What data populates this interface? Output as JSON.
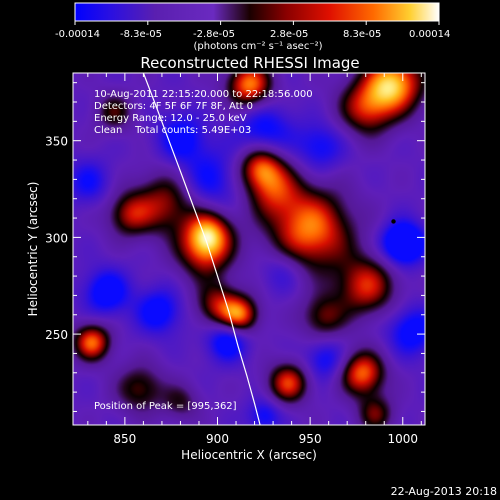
{
  "colorbar": {
    "tick_labels": [
      "-0.00014",
      "-8.3e-05",
      "-2.8e-05",
      "2.8e-05",
      "8.3e-05",
      "0.00014"
    ],
    "range": [
      -0.00014,
      0.00014
    ],
    "unit_label": "(photons cm⁻² s⁻¹ asec⁻²)",
    "colors": [
      "#0000ff",
      "#5a1fb0",
      "#6a2ac0",
      "#1a0000",
      "#cc0000",
      "#ff9a00",
      "#ffffff"
    ]
  },
  "chart_data": {
    "type": "heatmap",
    "title": "Reconstructed RHESSI Image",
    "xlabel": "Heliocentric X (arcsec)",
    "ylabel": "Heliocentric Y (arcsec)",
    "xlim": [
      822,
      1012
    ],
    "ylim": [
      203,
      385
    ],
    "x_ticks": [
      850,
      900,
      950,
      1000
    ],
    "y_ticks": [
      250,
      300,
      350
    ],
    "x_tick_labels": [
      "850",
      "900",
      "950",
      "1000"
    ],
    "y_tick_labels": [
      "250",
      "300",
      "350"
    ],
    "annotation_lines": [
      "10-Aug-2011 22:15:20.000 to 22:18:56.000",
      "Detectors: 4F 5F 6F 7F 8F, Att 0",
      "Energy Range: 12.0 - 25.0 keV",
      "Clean    Total counts: 5.49E+03"
    ],
    "peak_label": "Position of Peak = [995,362]",
    "peak": [
      995,
      362
    ],
    "limb_curve": {
      "x": [
        860,
        866,
        873,
        880,
        887,
        894,
        900,
        906,
        911,
        916,
        920,
        923
      ],
      "y": [
        385,
        370,
        352,
        334,
        316,
        298,
        280,
        262,
        244,
        228,
        214,
        203
      ]
    },
    "blobs": [
      [
        872,
        318,
        17,
        0.6
      ],
      [
        893,
        293,
        15,
        0.7
      ],
      [
        917,
        379,
        12,
        0.9
      ],
      [
        923,
        337,
        12,
        0.75
      ],
      [
        980,
        367,
        15,
        0.65
      ],
      [
        995,
        380,
        16,
        1.0
      ],
      [
        950,
        304,
        22,
        0.9
      ],
      [
        930,
        325,
        15,
        0.55
      ],
      [
        980,
        275,
        16,
        0.7
      ],
      [
        912,
        260,
        10,
        0.8
      ],
      [
        895,
        303,
        12,
        0.7
      ],
      [
        900,
        265,
        12,
        0.6
      ],
      [
        832,
        246,
        10,
        0.85
      ],
      [
        938,
        225,
        11,
        0.75
      ],
      [
        978,
        230,
        12,
        0.85
      ],
      [
        985,
        209,
        10,
        0.5
      ],
      [
        858,
        222,
        13,
        0.5
      ],
      [
        880,
        215,
        10,
        0.35
      ],
      [
        957,
        259,
        12,
        0.5
      ],
      [
        844,
        365,
        10,
        0.45
      ],
      [
        852,
        312,
        12,
        0.55
      ],
      [
        895,
        330,
        17,
        -0.4
      ],
      [
        925,
        355,
        15,
        -0.45
      ],
      [
        840,
        272,
        12,
        -0.55
      ],
      [
        880,
        352,
        13,
        -0.45
      ],
      [
        905,
        247,
        11,
        -0.55
      ],
      [
        1000,
        297,
        11,
        -0.9
      ],
      [
        955,
        347,
        13,
        -0.4
      ],
      [
        868,
        262,
        12,
        -0.5
      ],
      [
        958,
        237,
        11,
        -0.4
      ],
      [
        935,
        283,
        12,
        -0.3
      ],
      [
        1005,
        252,
        13,
        -0.5
      ],
      [
        830,
        329,
        12,
        -0.35
      ],
      [
        925,
        208,
        9,
        -0.4
      ]
    ]
  },
  "footer": {
    "date": "22-Aug-2013 20:18"
  }
}
